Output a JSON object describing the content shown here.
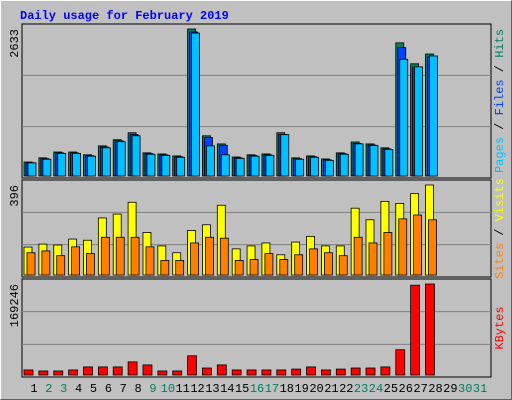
{
  "chart_data": [
    {
      "type": "bar",
      "title": "Daily usage for February 2019",
      "legend_separator": " / ",
      "ylim": [
        0,
        2633
      ],
      "yticks": [
        2633
      ],
      "series": [
        {
          "name": "Pages",
          "color": "#00c0ff",
          "values": [
            235,
            300,
            405,
            405,
            355,
            505,
            615,
            720,
            390,
            370,
            335,
            2560,
            540,
            380,
            315,
            355,
            370,
            740,
            300,
            335,
            280,
            390,
            575,
            545,
            475,
            2090,
            1955,
            2150,
            0,
            0,
            0
          ]
        },
        {
          "name": "Files",
          "color": "#0040ff",
          "values": [
            240,
            310,
            415,
            415,
            365,
            520,
            630,
            745,
            400,
            380,
            345,
            2580,
            690,
            550,
            325,
            365,
            380,
            745,
            310,
            345,
            290,
            400,
            585,
            555,
            485,
            2300,
            1950,
            2130,
            0,
            0,
            0
          ]
        },
        {
          "name": "Hits",
          "color": "#00805c",
          "values": [
            250,
            325,
            430,
            430,
            380,
            540,
            650,
            775,
            415,
            395,
            360,
            2633,
            720,
            575,
            340,
            380,
            395,
            775,
            325,
            360,
            305,
            415,
            610,
            575,
            505,
            2385,
            2010,
            2185,
            0,
            0,
            0
          ]
        }
      ]
    },
    {
      "type": "bar",
      "legend_separator": " / ",
      "ylim": [
        0,
        396
      ],
      "yticks": [
        396
      ],
      "series": [
        {
          "name": "Sites",
          "color": "#ff8000",
          "values": [
            98,
            106,
            85,
            124,
            94,
            166,
            166,
            166,
            124,
            64,
            64,
            141,
            166,
            162,
            64,
            68,
            94,
            68,
            89,
            115,
            98,
            85,
            166,
            141,
            187,
            247,
            264,
            243,
            0,
            0,
            0
          ]
        },
        {
          "name": "Visits",
          "color": "#ffff00",
          "values": [
            123,
            136,
            132,
            158,
            153,
            251,
            268,
            320,
            187,
            128,
            98,
            196,
            221,
            307,
            115,
            128,
            141,
            89,
            145,
            170,
            128,
            128,
            294,
            243,
            324,
            315,
            358,
            396,
            0,
            0,
            0
          ]
        }
      ]
    },
    {
      "type": "bar",
      "ylim": [
        0,
        169246
      ],
      "yticks": [
        169246
      ],
      "series": [
        {
          "name": "KBytes",
          "color": "#ff0000",
          "values": [
            9400,
            7500,
            7500,
            9400,
            15000,
            15000,
            15000,
            24400,
            18800,
            7500,
            7500,
            35700,
            13000,
            18800,
            9400,
            9400,
            9400,
            9400,
            11000,
            15000,
            9400,
            11000,
            13000,
            13000,
            15000,
            47000,
            167000,
            169246,
            0,
            0,
            0
          ]
        }
      ],
      "categories": [
        "1",
        "2",
        "3",
        "4",
        "5",
        "6",
        "7",
        "8",
        "9",
        "10",
        "11",
        "12",
        "13",
        "14",
        "15",
        "16",
        "17",
        "18",
        "19",
        "20",
        "21",
        "22",
        "23",
        "24",
        "25",
        "26",
        "27",
        "28",
        "29",
        "30",
        "31"
      ],
      "x_label_colors": [
        "#000000",
        "#00805c",
        "#00805c",
        "#000000",
        "#000000",
        "#000000",
        "#000000",
        "#000000",
        "#00805c",
        "#00805c",
        "#000000",
        "#000000",
        "#000000",
        "#000000",
        "#000000",
        "#00805c",
        "#00805c",
        "#000000",
        "#000000",
        "#000000",
        "#000000",
        "#000000",
        "#00805c",
        "#00805c",
        "#000000",
        "#000000",
        "#000000",
        "#000000",
        "#000000",
        "#00805c",
        "#00805c"
      ]
    }
  ]
}
